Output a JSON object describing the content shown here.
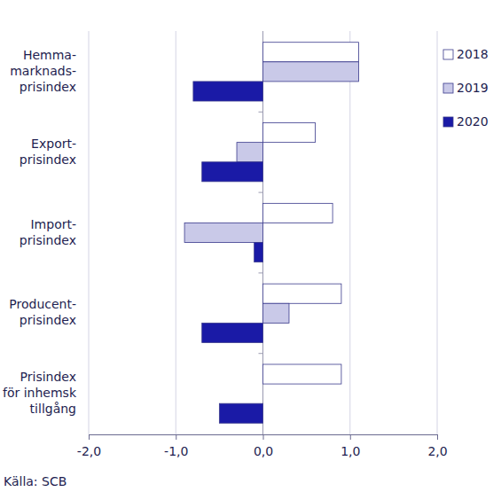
{
  "chart_data": {
    "type": "bar",
    "orientation": "horizontal",
    "grid": true,
    "legend": "top-right",
    "categories": [
      "Hemma-\nmarknads-\nprisindex",
      "Export-\nprisindex",
      "Import-\nprisindex",
      "Producent-\nprisindex",
      "Prisindex\nför inhemsk\ntillgång"
    ],
    "series": [
      {
        "name": "2018",
        "color": "#ffffff",
        "values": [
          1.1,
          0.6,
          0.8,
          0.9,
          0.9
        ]
      },
      {
        "name": "2019",
        "color": "#c9c9e8",
        "values": [
          1.1,
          -0.3,
          -0.9,
          0.3,
          0.0
        ]
      },
      {
        "name": "2020",
        "color": "#1a1aa6",
        "values": [
          -0.8,
          -0.7,
          -0.1,
          -0.7,
          -0.5
        ]
      }
    ],
    "xlim": [
      -2,
      2
    ],
    "xticks": [
      {
        "value": -2,
        "label": "-2,0"
      },
      {
        "value": -1,
        "label": "-1,0"
      },
      {
        "value": 0,
        "label": "0,0"
      },
      {
        "value": 1,
        "label": "1,0"
      },
      {
        "value": 2,
        "label": "2,0"
      }
    ],
    "source": "Källa: SCB"
  }
}
